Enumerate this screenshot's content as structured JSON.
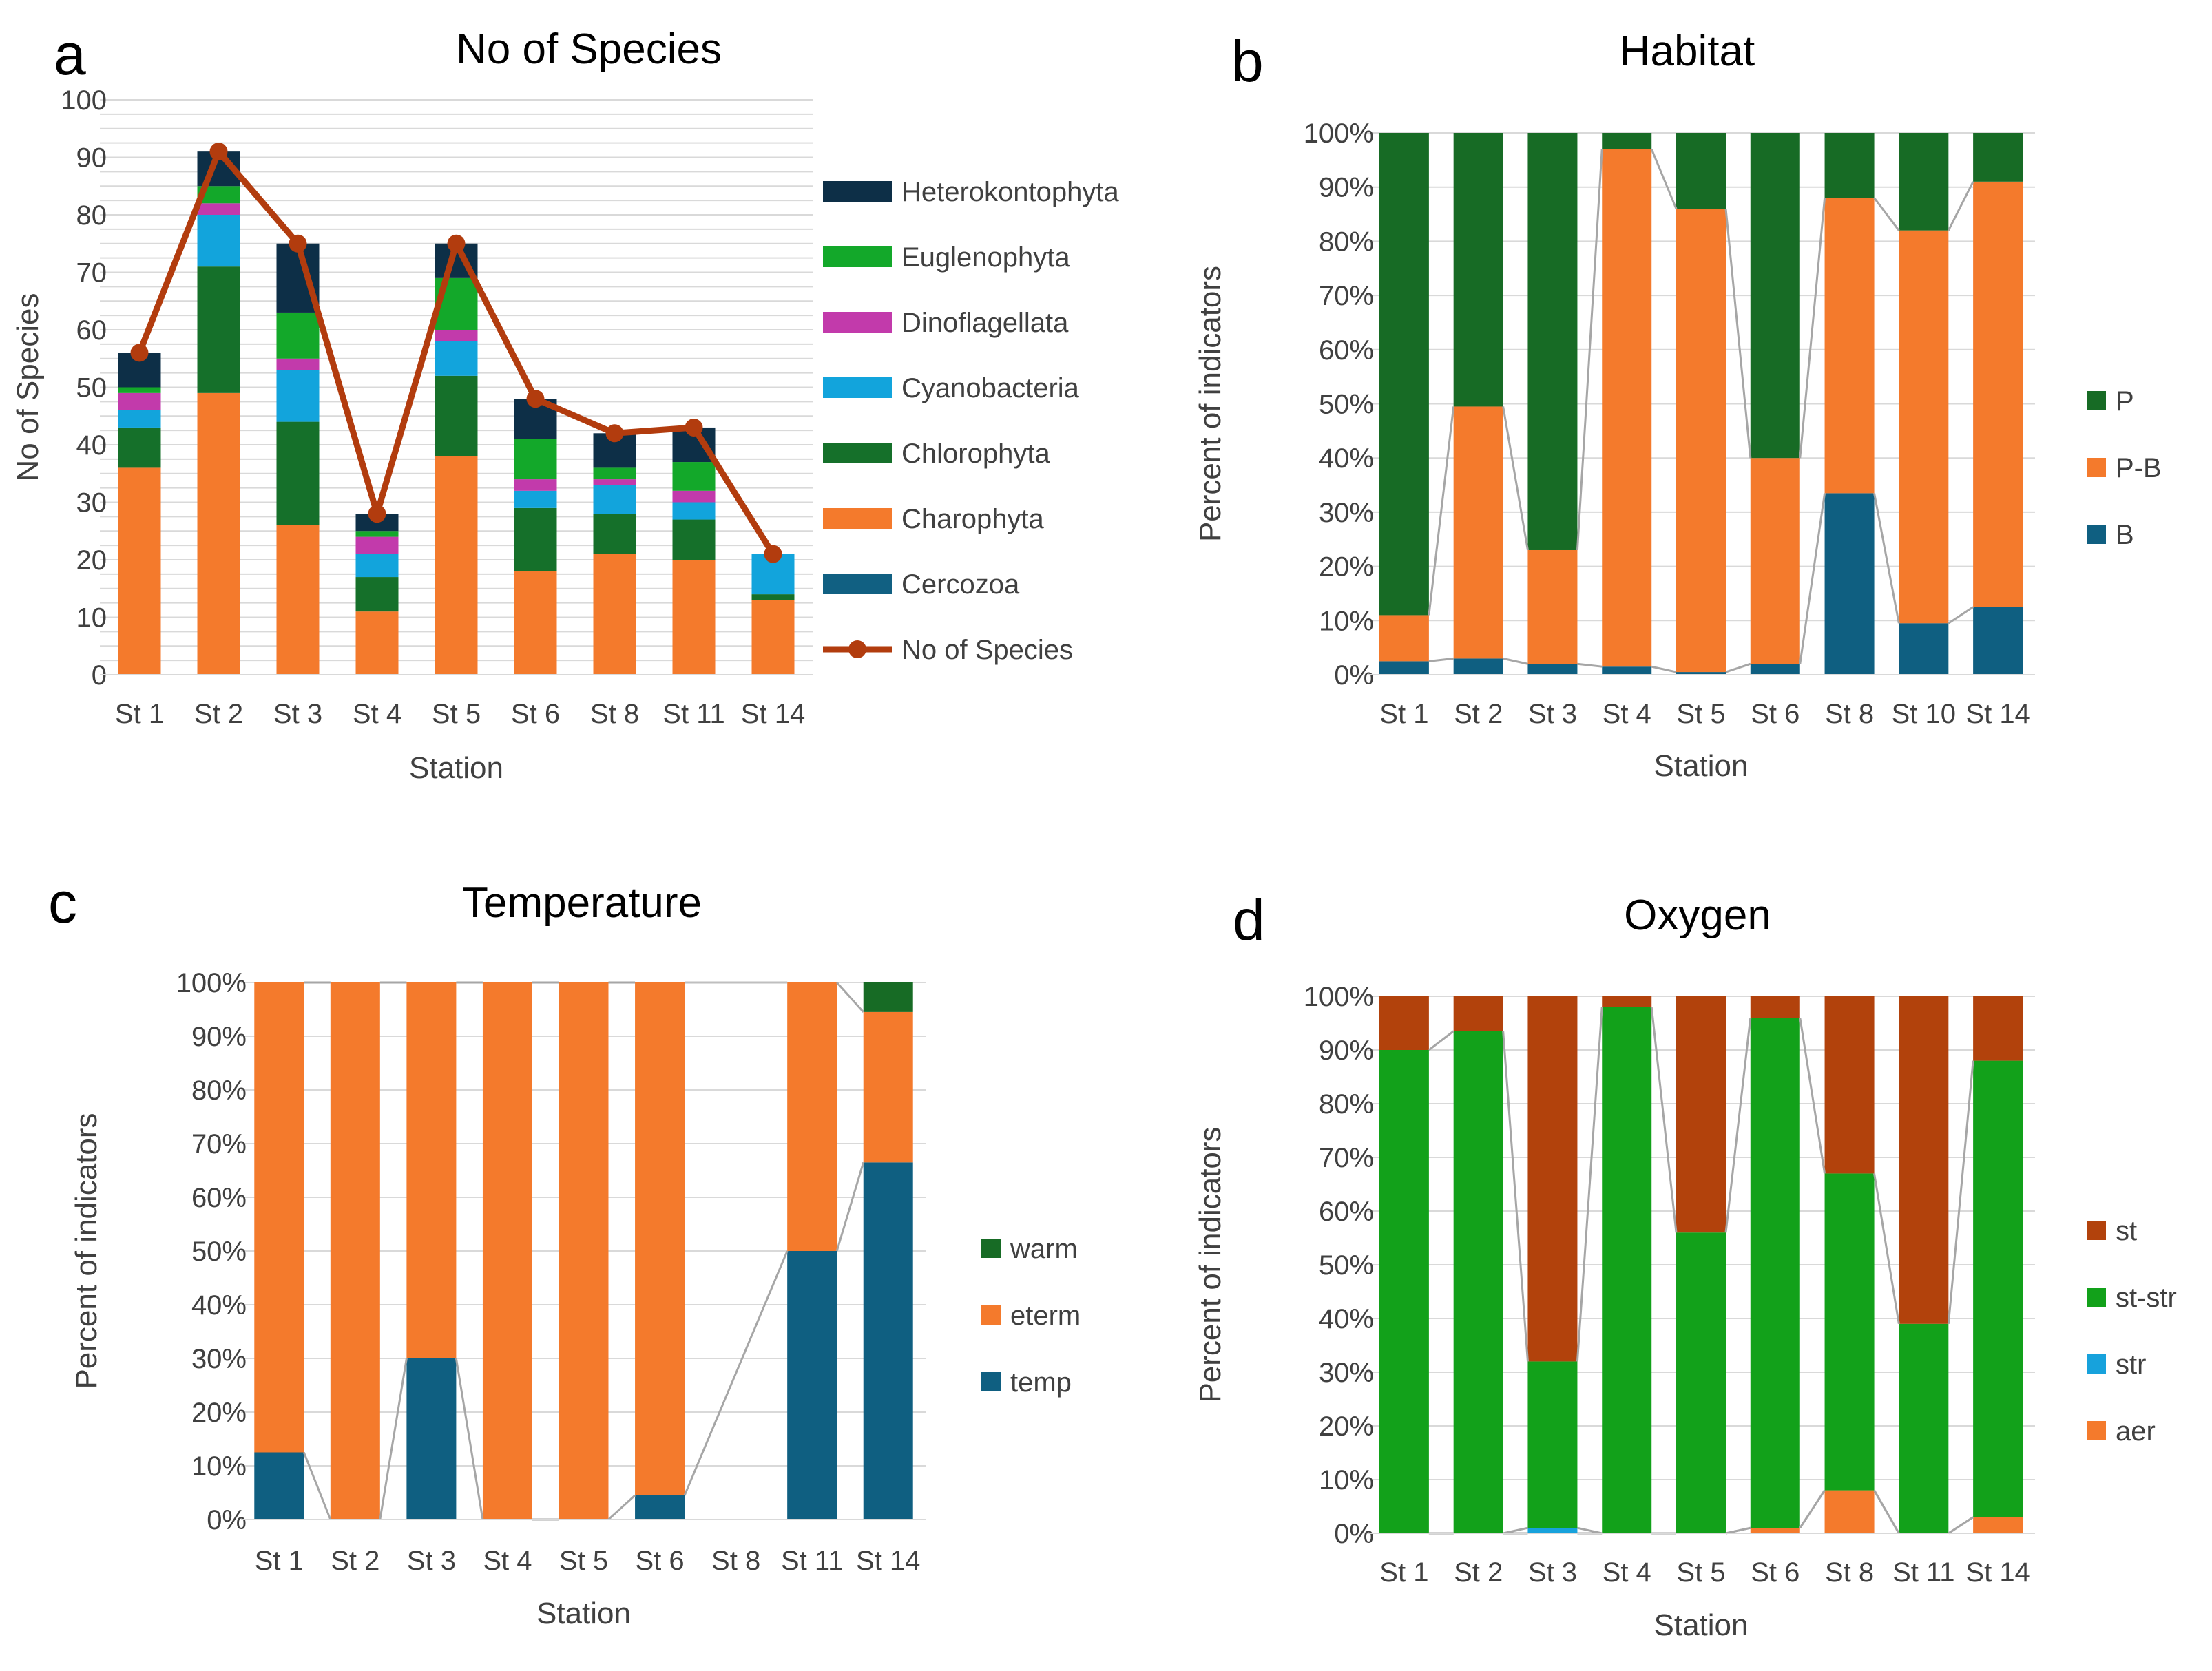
{
  "colors": {
    "Heterokontophyta": "#0d2f47",
    "Euglenophyta": "#13a82a",
    "Dinoflagellata": "#c23aab",
    "Cyanobacteria": "#12a4dc",
    "Chlorophyta": "#15702a",
    "Charophyta": "#f47a2c",
    "Cercozoa": "#116082",
    "line": "#b23c0e",
    "P": "#176b25",
    "P-B": "#f47a2c",
    "B": "#0f5f81",
    "warm": "#176b25",
    "eterm": "#f47a2c",
    "temp": "#0f5f81",
    "st": "#b2420c",
    "st-str": "#12a11a",
    "str": "#17a2dc",
    "aer": "#f47a2c"
  },
  "chart_data": [
    {
      "id": "a",
      "panel_letter": "a",
      "type": "bar",
      "stacked": true,
      "title": "No of Species",
      "xlabel": "Station",
      "ylabel": "No of Species",
      "ylim": [
        0,
        100
      ],
      "yticks": [
        "0",
        "10",
        "20",
        "30",
        "40",
        "50",
        "60",
        "70",
        "80",
        "90",
        "100"
      ],
      "categories": [
        "St 1",
        "St 2",
        "St 3",
        "St 4",
        "St 5",
        "St 6",
        "St 8",
        "St 11",
        "St 14"
      ],
      "series": [
        {
          "name": "Cercozoa",
          "values": [
            0,
            0,
            0,
            0,
            0,
            0,
            0,
            0,
            0
          ]
        },
        {
          "name": "Charophyta",
          "values": [
            36,
            49,
            26,
            11,
            38,
            18,
            21,
            20,
            13
          ]
        },
        {
          "name": "Chlorophyta",
          "values": [
            7,
            22,
            18,
            6,
            14,
            11,
            7,
            7,
            1
          ]
        },
        {
          "name": "Cyanobacteria",
          "values": [
            3,
            9,
            9,
            4,
            6,
            3,
            5,
            3,
            7
          ]
        },
        {
          "name": "Dinoflagellata",
          "values": [
            3,
            2,
            2,
            3,
            2,
            2,
            1,
            2,
            0
          ]
        },
        {
          "name": "Euglenophyta",
          "values": [
            1,
            3,
            8,
            1,
            9,
            7,
            2,
            5,
            0
          ]
        },
        {
          "name": "Heterokontophyta",
          "values": [
            6,
            6,
            12,
            3,
            6,
            7,
            6,
            6,
            0
          ]
        }
      ],
      "line": {
        "name": "No of Species",
        "values": [
          56,
          91,
          75,
          28,
          75,
          48,
          42,
          43,
          21
        ]
      },
      "legend": [
        "Heterokontophyta",
        "Euglenophyta",
        "Dinoflagellata",
        "Cyanobacteria",
        "Chlorophyta",
        "Charophyta",
        "Cercozoa",
        "No of Species"
      ]
    },
    {
      "id": "b",
      "panel_letter": "b",
      "type": "bar",
      "stacked": true,
      "title": "Habitat",
      "xlabel": "Station",
      "ylabel": "Percent of indicators",
      "ylim": [
        0,
        100
      ],
      "yticks": [
        "0%",
        "10%",
        "20%",
        "30%",
        "40%",
        "50%",
        "60%",
        "70%",
        "80%",
        "90%",
        "100%"
      ],
      "categories": [
        "St 1",
        "St 2",
        "St 3",
        "St 4",
        "St 5",
        "St 6",
        "St 8",
        "St 10",
        "St 14"
      ],
      "series": [
        {
          "name": "B",
          "values": [
            2.5,
            3,
            2,
            1.5,
            0.5,
            2,
            33.5,
            9.5,
            12.5
          ]
        },
        {
          "name": "P-B",
          "values": [
            8.5,
            46.5,
            21,
            95.5,
            85.5,
            38,
            54.5,
            72.5,
            78.5
          ]
        },
        {
          "name": "P",
          "values": [
            89,
            50.5,
            77,
            3,
            14,
            60,
            12,
            18,
            9
          ]
        }
      ],
      "legend": [
        "P",
        "P-B",
        "B"
      ]
    },
    {
      "id": "c",
      "panel_letter": "c",
      "type": "bar",
      "stacked": true,
      "title": "Temperature",
      "xlabel": "Station",
      "ylabel": "Percent of indicators",
      "ylim": [
        0,
        100
      ],
      "yticks": [
        "0%",
        "10%",
        "20%",
        "30%",
        "40%",
        "50%",
        "60%",
        "70%",
        "80%",
        "90%",
        "100%"
      ],
      "categories": [
        "St 1",
        "St 2",
        "St 3",
        "St 4",
        "St 5",
        "St 6",
        "St 8",
        "St 11",
        "St 14"
      ],
      "series": [
        {
          "name": "temp",
          "values": [
            12.5,
            0,
            30,
            0,
            0,
            4.5,
            0,
            50,
            66.5
          ]
        },
        {
          "name": "eterm",
          "values": [
            87.5,
            100,
            70,
            100,
            100,
            95.5,
            0,
            50,
            28
          ]
        },
        {
          "name": "warm",
          "values": [
            0,
            0,
            0,
            0,
            0,
            0,
            0,
            0,
            5.5
          ]
        }
      ],
      "legend": [
        "warm",
        "eterm",
        "temp"
      ]
    },
    {
      "id": "d",
      "panel_letter": "d",
      "type": "bar",
      "stacked": true,
      "title": "Oxygen",
      "xlabel": "Station",
      "ylabel": "Percent of indicators",
      "ylim": [
        0,
        100
      ],
      "yticks": [
        "0%",
        "10%",
        "20%",
        "30%",
        "40%",
        "50%",
        "60%",
        "70%",
        "80%",
        "90%",
        "100%"
      ],
      "categories": [
        "St 1",
        "St 2",
        "St 3",
        "St 4",
        "St 5",
        "St 6",
        "St 8",
        "St 11",
        "St 14"
      ],
      "series": [
        {
          "name": "aer",
          "values": [
            0,
            0,
            0,
            0,
            0,
            1,
            8,
            0,
            3
          ]
        },
        {
          "name": "str",
          "values": [
            0,
            0,
            1,
            0,
            0,
            0,
            0,
            0,
            0
          ]
        },
        {
          "name": "st-str",
          "values": [
            90,
            93.5,
            31,
            98,
            56,
            95,
            59,
            39,
            85
          ]
        },
        {
          "name": "st",
          "values": [
            10,
            6.5,
            68,
            2,
            44,
            4,
            33,
            61,
            12
          ]
        }
      ],
      "legend": [
        "st",
        "st-str",
        "str",
        "aer"
      ]
    }
  ]
}
